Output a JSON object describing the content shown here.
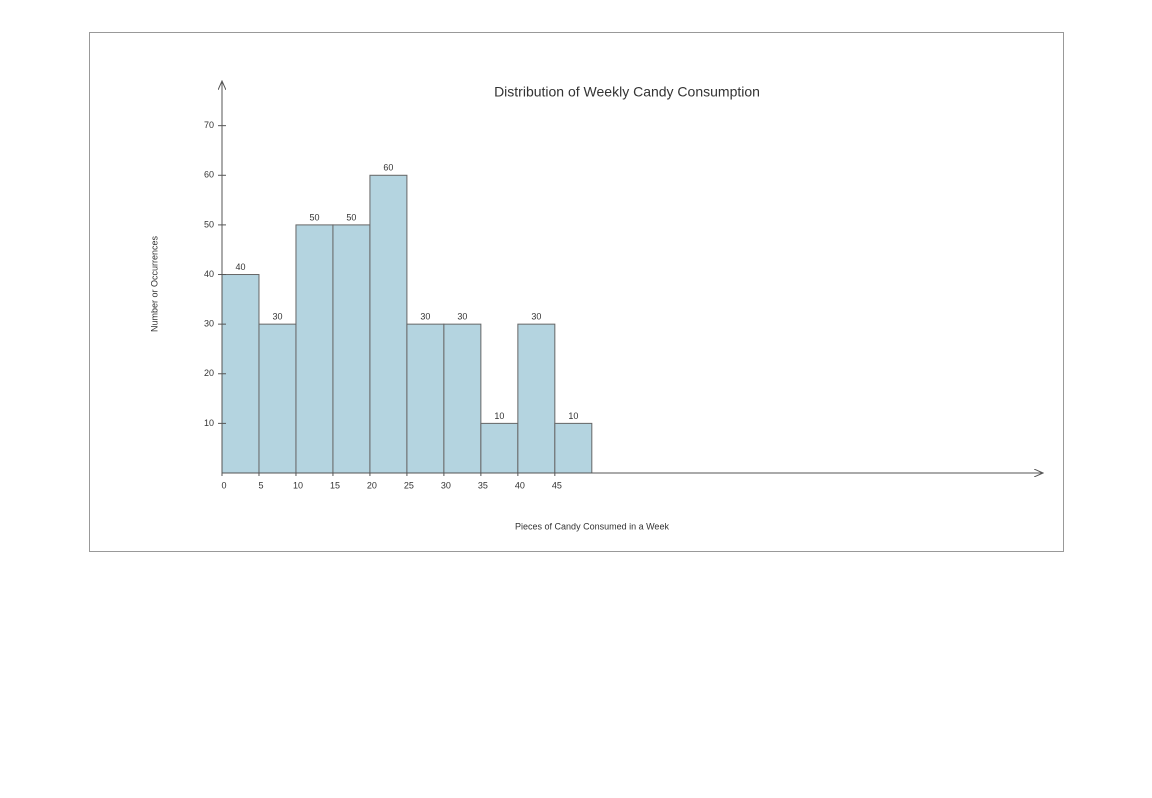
{
  "chart_data": {
    "type": "histogram",
    "title": "Distribution of Weekly Candy Consumption",
    "xlabel": "Pieces of Candy Consumed in a Week",
    "ylabel": "Number or Occurrences",
    "bins": [
      0,
      5,
      10,
      15,
      20,
      25,
      30,
      35,
      40,
      45,
      50
    ],
    "values": [
      40,
      30,
      50,
      50,
      60,
      30,
      30,
      10,
      30,
      10
    ],
    "color": "#b4d4e0",
    "xlim": [
      0,
      111
    ],
    "ylim": [
      0,
      79
    ],
    "xticks": [
      0,
      5,
      10,
      15,
      20,
      25,
      30,
      35,
      40,
      45
    ],
    "yticks": [
      10,
      20,
      30,
      40,
      50,
      60,
      70
    ],
    "grid": false
  }
}
